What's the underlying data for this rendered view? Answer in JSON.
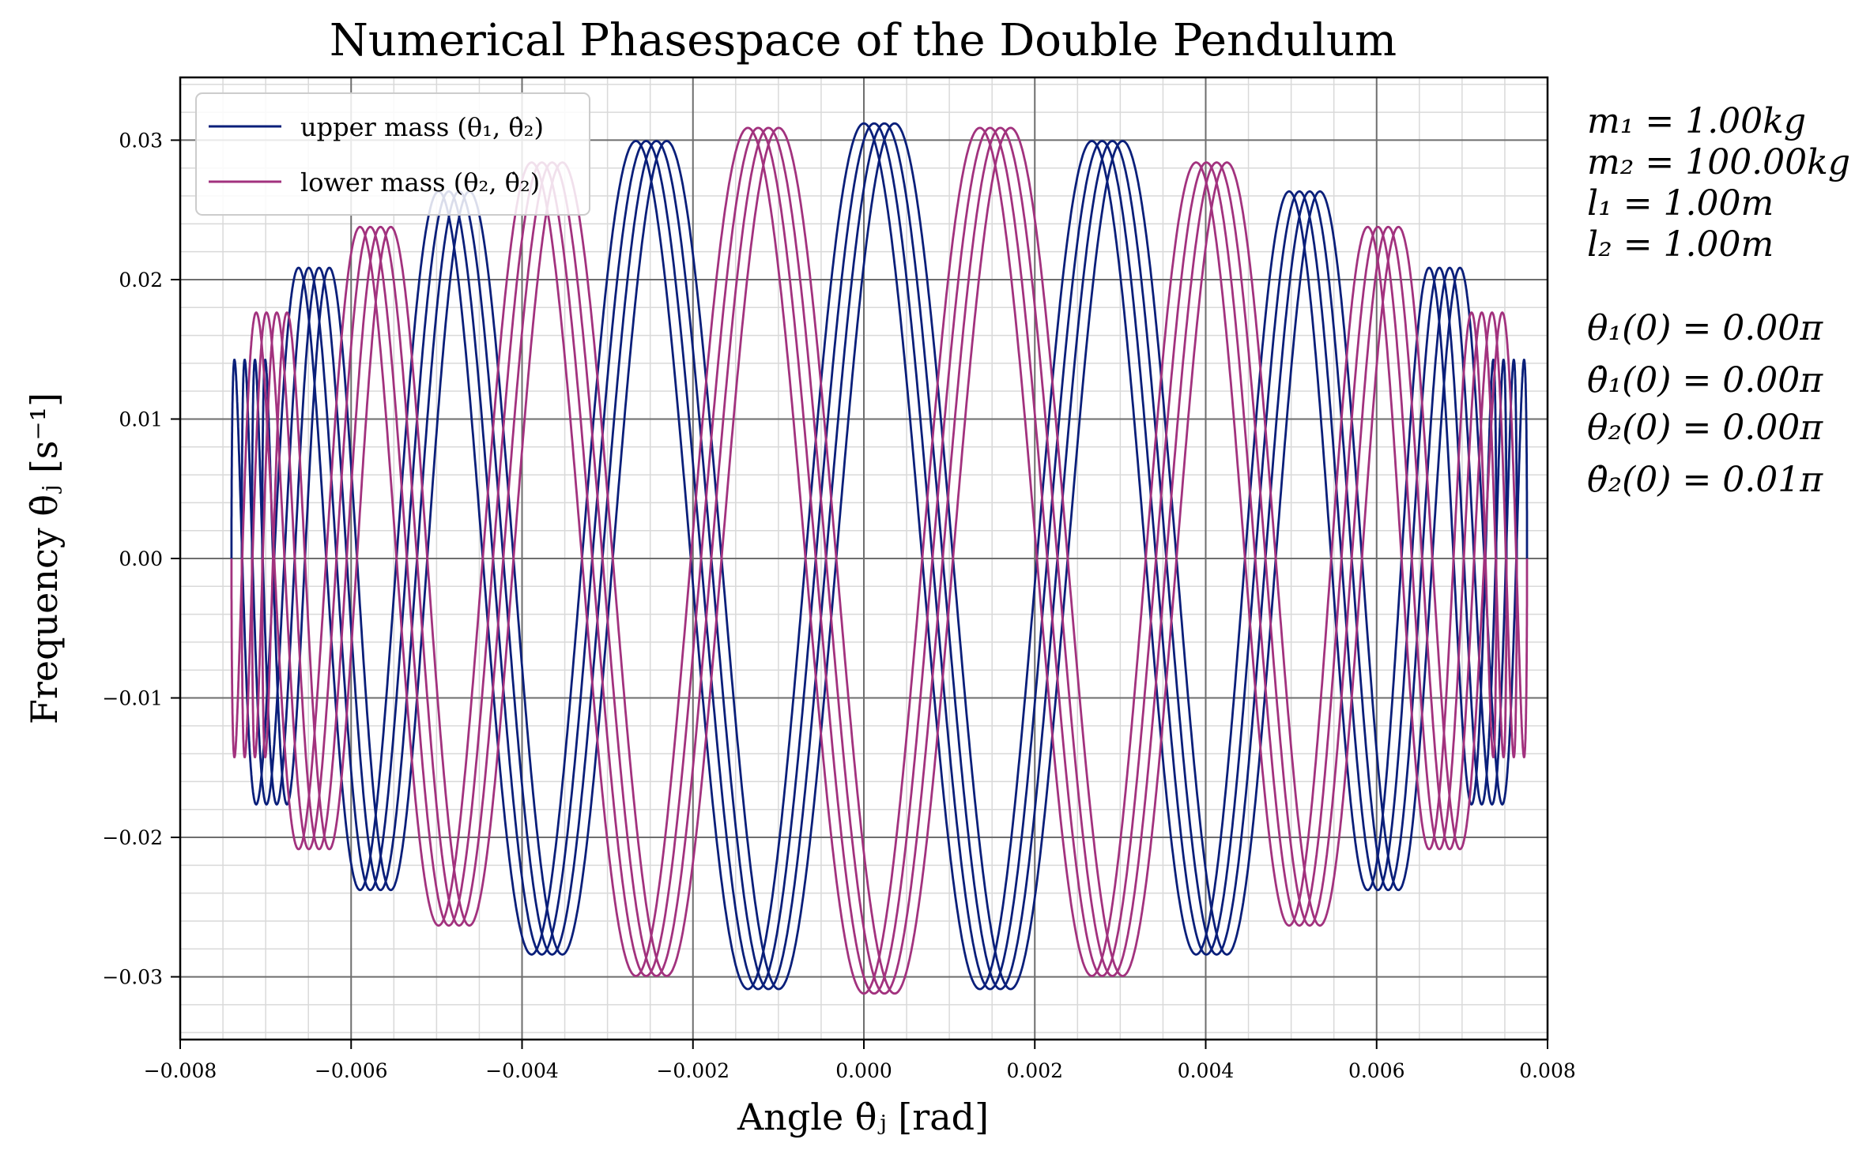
{
  "chart_data": {
    "type": "line",
    "title": "Numerical Phasespace of the Double Pendulum",
    "xlabel": "Angle θ̇ⱼ [rad]",
    "ylabel": "Frequency θ̇ⱼ [s⁻¹]",
    "xlim": [
      -0.008,
      0.008
    ],
    "ylim": [
      -0.0345,
      0.0345
    ],
    "xticks": [
      -0.008,
      -0.006,
      -0.004,
      -0.002,
      0.0,
      0.002,
      0.004,
      0.006,
      0.008
    ],
    "xtick_labels": [
      "−0.008",
      "−0.006",
      "−0.004",
      "−0.002",
      "0.000",
      "0.002",
      "0.004",
      "0.006",
      "0.008"
    ],
    "yticks": [
      -0.03,
      -0.02,
      -0.01,
      0.0,
      0.01,
      0.02,
      0.03
    ],
    "ytick_labels": [
      "−0.03",
      "−0.02",
      "−0.01",
      "0.00",
      "0.01",
      "0.02",
      "0.03"
    ],
    "grid": true,
    "legend_position": "upper-left",
    "series": [
      {
        "name": "upper mass (θ₁, θ̇₂)",
        "color": "#0a1f7a",
        "amplitude_theta": 0.0074,
        "amplitude_omega": 0.0312,
        "offsets": [
          0.0,
          0.00012,
          0.00024,
          0.00036
        ]
      },
      {
        "name": "lower mass (θ₂, θ̇₂)",
        "color": "#a2327e",
        "amplitude_theta": 0.0074,
        "amplitude_omega": 0.0312,
        "offsets": [
          0.0,
          0.00012,
          0.00024,
          0.00036
        ]
      }
    ],
    "parameters": [
      "m₁ = 1.00kg",
      "m₂ = 100.00kg",
      "l₁ = 1.00m",
      "l₂ = 1.00m",
      "θ₁(0) = 0.00π",
      "θ̇₁(0) = 0.00π",
      "θ₂(0) = 0.00π",
      "θ̇₂(0) = 0.01π"
    ]
  }
}
